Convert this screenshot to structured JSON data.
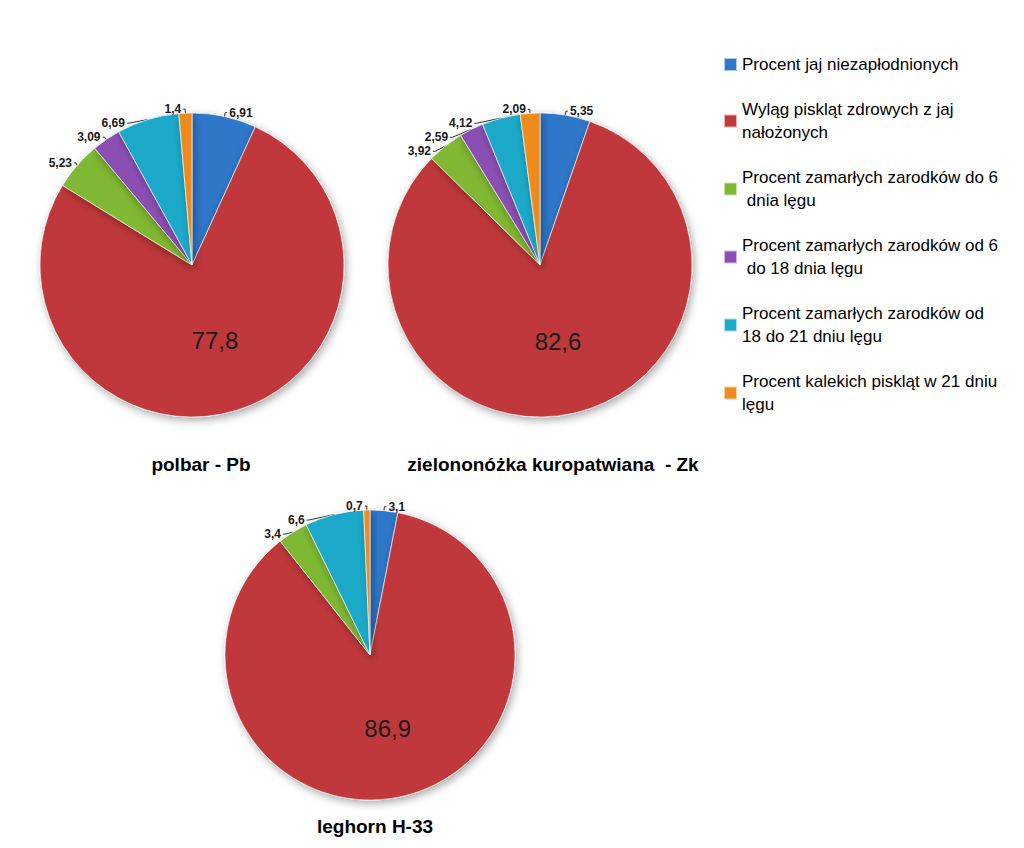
{
  "chart_data": [
    {
      "type": "pie",
      "title": "polbar - Pb",
      "categories": [
        "Procent jaj niezapłodnionych",
        "Wyląg piskląt zdrowych z jaj nałożonych",
        "Procent zamarłych zarodków do 6 dnia lęgu",
        "Procent zamarłych zarodków od 6 do 18 dnia lęgu",
        "Procent zamarłych zarodków od 18 do 21 dniu lęgu",
        "Procent kalekich piskląt w 21 dniu lęgu"
      ],
      "values": [
        6.91,
        77.8,
        5.23,
        3.09,
        6.69,
        1.4
      ],
      "value_labels": [
        "6,91",
        "77,8",
        "5,23",
        "3,09",
        "6,69",
        "1,4"
      ],
      "colors": [
        "#2f77c9",
        "#c0393b",
        "#7fb833",
        "#8b4fb3",
        "#1fa9c9",
        "#f08a1c"
      ],
      "data_labels": true,
      "legend": "right"
    },
    {
      "type": "pie",
      "title": "zielononóżka kuropatwiana  - Zk",
      "categories": [
        "Procent jaj niezapłodnionych",
        "Wyląg piskląt zdrowych z jaj nałożonych",
        "Procent zamarłych zarodków do 6 dnia lęgu",
        "Procent zamarłych zarodków od 6 do 18 dnia lęgu",
        "Procent zamarłych zarodków od 18 do 21 dniu lęgu",
        "Procent kalekich piskląt w 21 dniu lęgu"
      ],
      "values": [
        5.35,
        82.6,
        3.92,
        2.59,
        4.12,
        2.09
      ],
      "value_labels": [
        "5,35",
        "82,6",
        "3,92",
        "2,59",
        "4,12",
        "2,09"
      ],
      "colors": [
        "#2f77c9",
        "#c0393b",
        "#7fb833",
        "#8b4fb3",
        "#1fa9c9",
        "#f08a1c"
      ],
      "data_labels": true,
      "legend": "right"
    },
    {
      "type": "pie",
      "title": "leghorn H-33",
      "categories": [
        "Procent jaj niezapłodnionych",
        "Wyląg piskląt zdrowych z jaj nałożonych",
        "Procent zamarłych zarodków do 6 dnia lęgu",
        "Procent zamarłych zarodków od 6 do 18 dnia lęgu",
        "Procent zamarłych zarodków od 18 do 21 dniu lęgu",
        "Procent kalekich piskląt w 21 dniu lęgu"
      ],
      "values": [
        3.1,
        86.9,
        3.4,
        null,
        6.6,
        0.7
      ],
      "value_labels": [
        "3,1",
        "86,9",
        "3,4",
        null,
        "6,6",
        "0,7"
      ],
      "colors": [
        "#2f77c9",
        "#c0393b",
        "#7fb833",
        "#8b4fb3",
        "#1fa9c9",
        "#f08a1c"
      ],
      "data_labels": true,
      "legend": "right"
    }
  ]
}
